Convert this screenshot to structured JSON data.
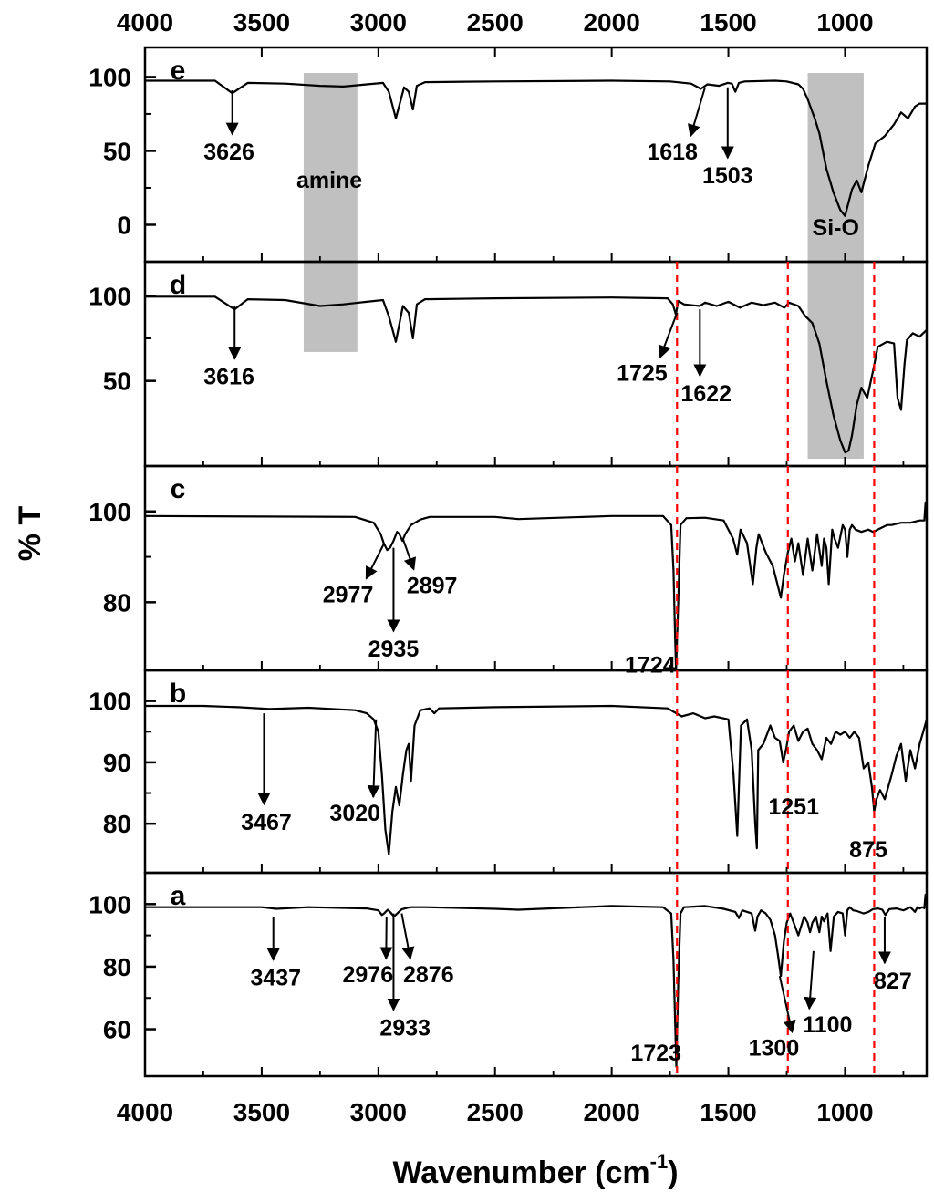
{
  "chart_data": {
    "type": "line",
    "xlabel_main": "Wavenumber (cm",
    "xlabel_sup": "-1",
    "xlabel_close": ")",
    "ylabel": "% T",
    "xlim": [
      4000,
      650
    ],
    "x_ticks": [
      4000,
      3500,
      3000,
      2500,
      2000,
      1500,
      1000
    ],
    "x_tick_labels": [
      "4000",
      "3500",
      "3000",
      "2500",
      "2000",
      "1500",
      "1000"
    ],
    "accent_color": "#ff0000",
    "highlight_color": "#c0c0c0",
    "reference_lines": [
      1720,
      1245,
      875
    ],
    "panels": [
      {
        "id": "e",
        "label": "e",
        "ylim": [
          -25,
          120
        ],
        "y_ticks": [
          0,
          50,
          100
        ],
        "y_tick_labels": [
          "0",
          "50",
          "100"
        ],
        "bands": [
          {
            "x1": 3320,
            "x2": 3090,
            "label": "amine",
            "label_x": 3210,
            "label_y": 25
          },
          {
            "x1": 1160,
            "x2": 920,
            "label": "Si-O",
            "label_x": 1040,
            "label_y": -7
          }
        ],
        "series": {
          "baseline": 97.5,
          "end": 82,
          "x": [
            3700,
            3626,
            3560,
            3400,
            3250,
            3150,
            3050,
            2980,
            2955,
            2925,
            2890,
            2870,
            2852,
            2835,
            2800,
            2500,
            2000,
            1750,
            1660,
            1618,
            1590,
            1540,
            1503,
            1485,
            1470,
            1455,
            1430,
            1300,
            1250,
            1200,
            1180,
            1160,
            1130,
            1110,
            1080,
            1050,
            1020,
            1000,
            990,
            970,
            950,
            930,
            900,
            870,
            830,
            790,
            760,
            730,
            700,
            680,
            650
          ],
          "y": [
            97.5,
            89,
            96,
            95.5,
            94,
            93.5,
            95,
            96,
            90,
            72,
            93,
            90,
            78,
            94,
            96.5,
            97,
            97.5,
            97,
            95.5,
            92,
            95,
            94,
            96,
            95.5,
            90,
            96,
            97,
            97.5,
            97,
            95,
            92,
            85,
            72,
            62,
            38,
            22,
            10,
            6,
            12,
            24,
            30,
            22,
            40,
            55,
            60,
            68,
            76,
            72,
            80,
            82,
            82
          ]
        },
        "annotations": [
          {
            "text": "3626",
            "x": 3626,
            "y": 91,
            "label_x": 3640,
            "label_y": 44,
            "style": "down"
          },
          {
            "text": "1618",
            "x": 1600,
            "y": 93,
            "label_x": 1740,
            "label_y": 44,
            "style": "diag"
          },
          {
            "text": "1503",
            "x": 1503,
            "y": 93,
            "label_x": 1503,
            "label_y": 28,
            "style": "down"
          }
        ]
      },
      {
        "id": "d",
        "label": "d",
        "ylim": [
          0,
          120
        ],
        "y_ticks": [
          50,
          100
        ],
        "y_tick_labels": [
          "50",
          "100"
        ],
        "bands": [
          {
            "x1": 3320,
            "x2": 3090,
            "label": "",
            "label_x": 0,
            "label_y": 0
          },
          {
            "x1": 1160,
            "x2": 920,
            "label": "",
            "label_x": 0,
            "label_y": 0
          }
        ],
        "series": {
          "baseline": 99.5,
          "end": 80,
          "x": [
            3700,
            3616,
            3560,
            3400,
            3250,
            3150,
            3050,
            2980,
            2955,
            2925,
            2895,
            2870,
            2852,
            2835,
            2800,
            2500,
            2000,
            1760,
            1738,
            1725,
            1715,
            1690,
            1622,
            1600,
            1550,
            1500,
            1450,
            1400,
            1350,
            1300,
            1260,
            1240,
            1200,
            1170,
            1140,
            1110,
            1080,
            1050,
            1020,
            1000,
            985,
            970,
            950,
            930,
            905,
            880,
            860,
            820,
            790,
            775,
            760,
            745,
            735,
            710,
            680,
            650
          ],
          "y": [
            99.5,
            92,
            98,
            97.5,
            94,
            95,
            96.5,
            97.5,
            88,
            73,
            94,
            90,
            75,
            95,
            98,
            98.5,
            99,
            98.5,
            95,
            89,
            97,
            95,
            94,
            96,
            94,
            96.5,
            93,
            96,
            94.5,
            96,
            93,
            96,
            94,
            88,
            84,
            72,
            50,
            30,
            15,
            8,
            9,
            18,
            36,
            46,
            40,
            56,
            70,
            73,
            72,
            40,
            33,
            60,
            74,
            78,
            76,
            80
          ]
        },
        "annotations": [
          {
            "text": "3616",
            "x": 3616,
            "y": 94,
            "label_x": 3640,
            "label_y": 48,
            "style": "down"
          },
          {
            "text": "1725",
            "x": 1720,
            "y": 90,
            "label_x": 1870,
            "label_y": 50,
            "style": "diag"
          },
          {
            "text": "1622",
            "x": 1622,
            "y": 92,
            "label_x": 1595,
            "label_y": 38,
            "style": "down"
          }
        ]
      },
      {
        "id": "c",
        "label": "c",
        "ylim": [
          65,
          110
        ],
        "y_ticks": [
          80,
          100
        ],
        "y_tick_labels": [
          "80",
          "100"
        ],
        "bands": [],
        "series": {
          "baseline": 98.8,
          "end": 98,
          "x": [
            4000,
            3100,
            3020,
            2990,
            2977,
            2962,
            2950,
            2935,
            2920,
            2910,
            2897,
            2885,
            2860,
            2820,
            2780,
            2500,
            2400,
            2000,
            1780,
            1745,
            1735,
            1728,
            1724,
            1715,
            1705,
            1680,
            1600,
            1520,
            1480,
            1462,
            1448,
            1420,
            1395,
            1380,
            1370,
            1340,
            1310,
            1290,
            1275,
            1262,
            1245,
            1230,
            1215,
            1200,
            1180,
            1160,
            1140,
            1120,
            1100,
            1090,
            1080,
            1070,
            1055,
            1045,
            1030,
            1010,
            1000,
            990,
            980,
            970,
            955,
            930,
            900,
            880,
            860,
            840,
            820,
            800,
            760,
            720,
            680,
            660,
            655,
            650
          ],
          "y": [
            99,
            98.8,
            97.5,
            95,
            93,
            91.5,
            92,
            93.5,
            95.5,
            95,
            93.5,
            95,
            97,
            98.2,
            98.8,
            98.8,
            98.3,
            99,
            99,
            97,
            87,
            72,
            65,
            80,
            97,
            98.5,
            98.6,
            98,
            94,
            90.5,
            96,
            93,
            84,
            92,
            95,
            91,
            88,
            84,
            81,
            86,
            91,
            94,
            89,
            93,
            86,
            94,
            87,
            95,
            88,
            94,
            92,
            84,
            96,
            94,
            92,
            97,
            96,
            90,
            96,
            97,
            96,
            95.5,
            96,
            95.5,
            96,
            96.5,
            97,
            97,
            97.5,
            97.5,
            98,
            98,
            102,
            98.5
          ]
        },
        "annotations": [
          {
            "text": "2977",
            "x": 2975,
            "y": 93,
            "label_x": 3130,
            "label_y": 80,
            "style": "diag"
          },
          {
            "text": "2935",
            "x": 2935,
            "y": 92,
            "label_x": 2935,
            "label_y": 68,
            "style": "down"
          },
          {
            "text": "2897",
            "x": 2895,
            "y": 94,
            "label_x": 2770,
            "label_y": 82,
            "style": "diag"
          },
          {
            "text": "1724",
            "x": 1724,
            "y": 0,
            "label_x": 1835,
            "label_y": 64.5,
            "style": "none"
          }
        ]
      },
      {
        "id": "b",
        "label": "b",
        "ylim": [
          72,
          105
        ],
        "y_ticks": [
          80,
          90,
          100
        ],
        "y_tick_labels": [
          "80",
          "90",
          "100"
        ],
        "bands": [],
        "series": {
          "baseline": 99.2,
          "end": 97,
          "x": [
            4000,
            3750,
            3600,
            3467,
            3300,
            3100,
            3050,
            3020,
            3000,
            2985,
            2970,
            2955,
            2940,
            2925,
            2910,
            2895,
            2880,
            2870,
            2860,
            2845,
            2820,
            2780,
            2760,
            2740,
            2500,
            2000,
            1760,
            1700,
            1650,
            1600,
            1560,
            1500,
            1478,
            1462,
            1446,
            1420,
            1400,
            1385,
            1378,
            1372,
            1350,
            1320,
            1300,
            1280,
            1265,
            1251,
            1240,
            1220,
            1200,
            1180,
            1160,
            1140,
            1120,
            1100,
            1080,
            1060,
            1040,
            1020,
            1000,
            980,
            960,
            940,
            920,
            900,
            885,
            875,
            865,
            850,
            830,
            800,
            780,
            760,
            740,
            720,
            700,
            680,
            665,
            650
          ],
          "y": [
            99.2,
            99.2,
            99,
            98.7,
            98.9,
            98.5,
            98,
            97,
            95,
            88,
            79,
            75,
            82,
            86,
            83,
            88,
            92,
            93,
            87,
            96,
            98.5,
            98.8,
            98,
            98.8,
            99,
            99.2,
            98.8,
            97.5,
            98,
            97.2,
            97.5,
            97,
            88,
            78,
            96,
            97,
            92,
            80,
            76,
            92,
            93,
            96,
            94,
            93.5,
            90,
            92.5,
            95,
            96,
            93.5,
            95,
            95.5,
            93,
            92,
            90.5,
            94,
            93,
            95,
            94.5,
            95,
            94,
            95,
            94,
            89,
            90,
            86,
            82,
            84,
            85.5,
            84,
            88,
            91,
            93,
            87,
            92,
            89,
            93,
            95,
            97
          ]
        },
        "annotations": [
          {
            "text": "3467",
            "x": 3490,
            "y": 98,
            "label_x": 3480,
            "label_y": 79,
            "style": "down"
          },
          {
            "text": "3020",
            "x": 3010,
            "y": 97,
            "label_x": 3100,
            "label_y": 80.5,
            "style": "diag"
          },
          {
            "text": "1251",
            "x": 1251,
            "y": 0,
            "label_x": 1220,
            "label_y": 81.5,
            "style": "none"
          },
          {
            "text": "875",
            "x": 875,
            "y": 0,
            "label_x": 900,
            "label_y": 74.5,
            "style": "none"
          }
        ]
      },
      {
        "id": "a",
        "label": "a",
        "ylim": [
          45,
          110
        ],
        "y_ticks": [
          60,
          80,
          100
        ],
        "y_tick_labels": [
          "60",
          "80",
          "100"
        ],
        "bands": [],
        "series": {
          "baseline": 99,
          "end": 99.5,
          "x": [
            4000,
            3500,
            3437,
            3300,
            3050,
            3000,
            2985,
            2976,
            2960,
            2950,
            2933,
            2915,
            2900,
            2876,
            2860,
            2800,
            2500,
            2400,
            2000,
            1780,
            1745,
            1735,
            1728,
            1723,
            1715,
            1705,
            1690,
            1600,
            1520,
            1470,
            1455,
            1440,
            1400,
            1385,
            1375,
            1360,
            1340,
            1320,
            1300,
            1288,
            1275,
            1262,
            1250,
            1235,
            1220,
            1200,
            1190,
            1175,
            1160,
            1150,
            1140,
            1125,
            1110,
            1100,
            1090,
            1075,
            1062,
            1048,
            1030,
            1010,
            1000,
            990,
            980,
            965,
            950,
            920,
            900,
            880,
            860,
            840,
            827,
            810,
            780,
            750,
            720,
            700,
            690,
            680,
            670,
            660,
            655,
            650
          ],
          "y": [
            99,
            99,
            98.5,
            99,
            98.6,
            98,
            96.5,
            97,
            98.2,
            97.5,
            96,
            97.3,
            98.3,
            98.8,
            99,
            99,
            98.5,
            98.2,
            99.4,
            99,
            97,
            82,
            62,
            48,
            75,
            97,
            99,
            99.4,
            98.5,
            97.5,
            95.5,
            98,
            97,
            91.5,
            96,
            98,
            97,
            95,
            90,
            84,
            77,
            88,
            94,
            97,
            94,
            90,
            92.5,
            96,
            94,
            91,
            94,
            96,
            91,
            96,
            94.5,
            97,
            85,
            96,
            97.5,
            97,
            90,
            98,
            99,
            98,
            97.8,
            97,
            97.5,
            98.4,
            98.6,
            98.2,
            96.5,
            98.4,
            98.6,
            98,
            99,
            97.5,
            99,
            98.6,
            99,
            98.7,
            103,
            99.5
          ]
        },
        "annotations": [
          {
            "text": "3437",
            "x": 3450,
            "y": 96,
            "label_x": 3440,
            "label_y": 74,
            "style": "down"
          },
          {
            "text": "2976",
            "x": 2965,
            "y": 96,
            "label_x": 3045,
            "label_y": 75,
            "style": "diag"
          },
          {
            "text": "2933",
            "x": 2935,
            "y": 97,
            "label_x": 2885,
            "label_y": 58,
            "style": "down"
          },
          {
            "text": "2876",
            "x": 2900,
            "y": 97,
            "label_x": 2785,
            "label_y": 75,
            "style": "diag"
          },
          {
            "text": "1723",
            "x": 1723,
            "y": 0,
            "label_x": 1810,
            "label_y": 50,
            "style": "none"
          },
          {
            "text": "1300",
            "x": 1280,
            "y": 77,
            "label_x": 1305,
            "label_y": 51.5,
            "style": "diag"
          },
          {
            "text": "1100",
            "x": 1135,
            "y": 85,
            "label_x": 1075,
            "label_y": 59,
            "style": "diag"
          },
          {
            "text": "827",
            "x": 830,
            "y": 96,
            "label_x": 795,
            "label_y": 73,
            "style": "down"
          }
        ]
      }
    ]
  }
}
